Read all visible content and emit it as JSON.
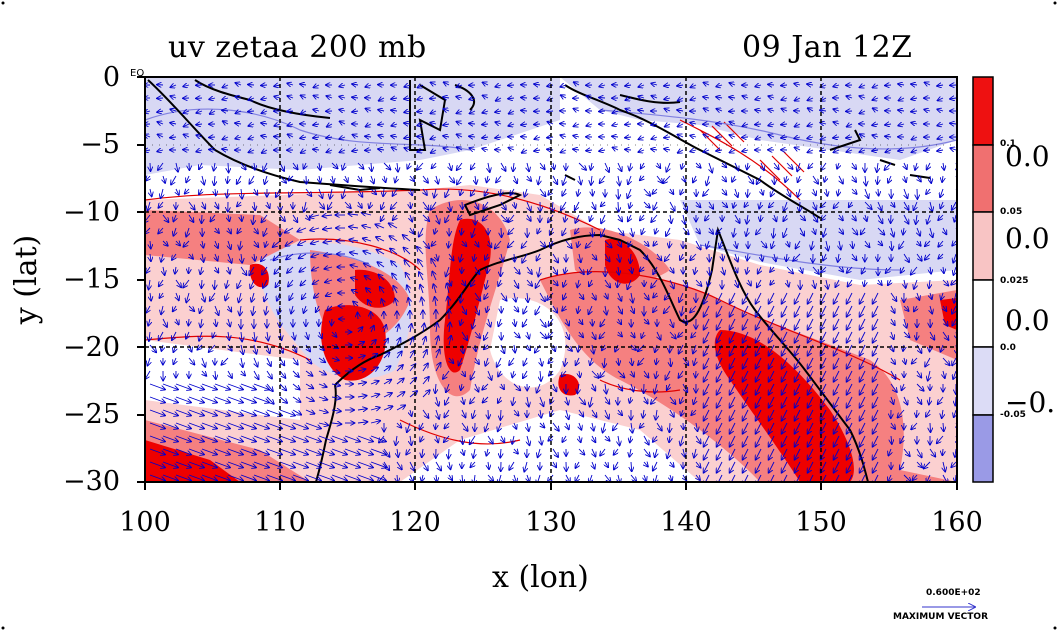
{
  "title_left": "uv zetaa 200 mb",
  "title_right": "09 Jan 12Z",
  "x_axis": {
    "label": "x (lon)",
    "ticks": [
      "100",
      "110",
      "120",
      "130",
      "140",
      "150",
      "160"
    ]
  },
  "y_axis": {
    "label": "y (lat)",
    "ticks": [
      "0",
      "−5",
      "−10",
      "−15",
      "−20",
      "−25",
      "−30"
    ]
  },
  "eq_label": "EQ",
  "colorbar": {
    "small_labels": [
      "0.1",
      "0.05",
      "0.025",
      "0.0",
      "-0.05"
    ],
    "big_labels": [
      "0.0",
      "0.0",
      "0.0",
      "−0."
    ],
    "colors": [
      "#ee1111",
      "#f07070",
      "#f8c4c4",
      "#ffffff",
      "#dcdcf6",
      "#9a9ae6"
    ]
  },
  "vector": {
    "value": "0.600E+02",
    "label": "MAXIMUM VECTOR"
  },
  "colors": {
    "positive_strong": "#ee0000",
    "positive": "#f58080",
    "positive_light": "#fbd0d0",
    "negative_light": "#d8d8f4",
    "negative": "#a0a0e8",
    "contour_red": "#e00000",
    "contour_blue": "#8080e0",
    "vector": "#0000cc",
    "coast": "#000000",
    "grid": "#000000"
  },
  "chart_data": {
    "type": "heatmap",
    "variable": "zetaa",
    "level": "200 mb",
    "time": "09 Jan 12Z",
    "xlim": [
      100,
      160
    ],
    "ylim": [
      -30,
      0
    ],
    "x_ticks": [
      100,
      110,
      120,
      130,
      140,
      150,
      160
    ],
    "y_ticks": [
      0,
      -5,
      -10,
      -15,
      -20,
      -25,
      -30
    ],
    "colorbar_levels": [
      0.1,
      0.05,
      0.025,
      0.0,
      -0.05
    ],
    "grid": true
  }
}
